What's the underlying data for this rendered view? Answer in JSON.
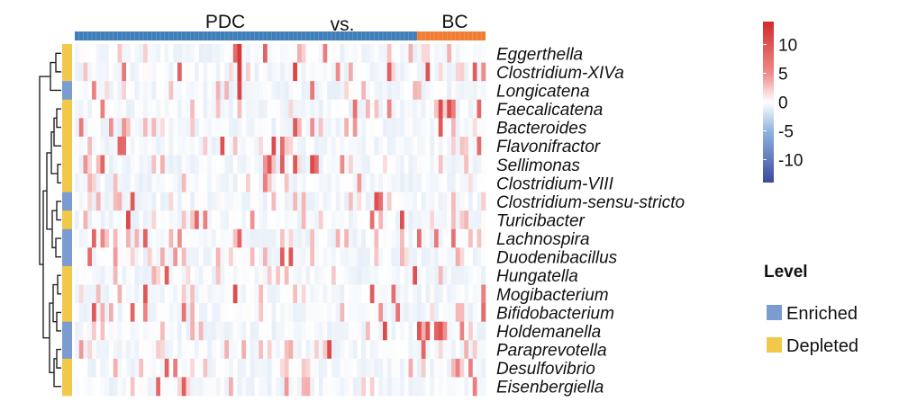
{
  "chart_data": {
    "type": "heatmap",
    "title": "",
    "groups": [
      {
        "name": "PDC",
        "color": "#3f7fb9"
      },
      {
        "name": "BC",
        "color": "#f07d32"
      }
    ],
    "group_separator_label": "vs.",
    "group_sizes": {
      "PDC": 80,
      "BC": 16
    },
    "rows": [
      {
        "genus": "Eggerthella",
        "level": "Depleted"
      },
      {
        "genus": "Clostridium-XIVa",
        "level": "Depleted"
      },
      {
        "genus": "Longicatena",
        "level": "Enriched"
      },
      {
        "genus": "Faecalicatena",
        "level": "Depleted"
      },
      {
        "genus": "Bacteroides",
        "level": "Depleted"
      },
      {
        "genus": "Flavonifractor",
        "level": "Depleted"
      },
      {
        "genus": "Sellimonas",
        "level": "Depleted"
      },
      {
        "genus": "Clostridium-VIII",
        "level": "Depleted"
      },
      {
        "genus": "Clostridium-sensu-stricto",
        "level": "Enriched"
      },
      {
        "genus": "Turicibacter",
        "level": "Depleted"
      },
      {
        "genus": "Lachnospira",
        "level": "Enriched"
      },
      {
        "genus": "Duodenibacillus",
        "level": "Enriched"
      },
      {
        "genus": "Hungatella",
        "level": "Depleted"
      },
      {
        "genus": "Mogibacterium",
        "level": "Depleted"
      },
      {
        "genus": "Bifidobacterium",
        "level": "Depleted"
      },
      {
        "genus": "Holdemanella",
        "level": "Enriched"
      },
      {
        "genus": "Paraprevotella",
        "level": "Enriched"
      },
      {
        "genus": "Desulfovibrio",
        "level": "Depleted"
      },
      {
        "genus": "Eisenbergiella",
        "level": "Depleted"
      }
    ],
    "colorscale": {
      "min": -14,
      "max": 14,
      "ticks": [
        10,
        5,
        0,
        -5,
        -10
      ],
      "low_color": "#3b4aa0",
      "mid_color": "#ffffff",
      "high_color": "#d42a2a"
    },
    "legend": {
      "title": "Level",
      "items": [
        {
          "label": "Enriched",
          "color": "#7a9cd0"
        },
        {
          "label": "Depleted",
          "color": "#f2c84b"
        }
      ]
    },
    "notable_cells": [
      {
        "genus": "Eggerthella",
        "column": 38,
        "value": 13
      },
      {
        "genus": "Clostridium-XIVa",
        "column": 38,
        "value": 13
      },
      {
        "genus": "Longicatena",
        "column": 38,
        "value": 12
      }
    ]
  }
}
